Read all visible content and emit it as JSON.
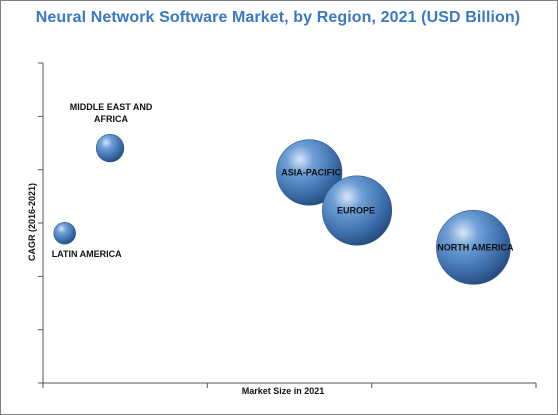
{
  "chart_data": {
    "type": "bubble",
    "title": "Neural Network Software Market, by Region, 2021 (USD Billion)",
    "xlabel": "Market Size in 2021",
    "ylabel": "CAGR (2016-2021)",
    "xlim": [
      0,
      100
    ],
    "ylim": [
      0,
      100
    ],
    "grid": false,
    "legend": "none",
    "bubble_color": "#4a7fc0",
    "points": [
      {
        "label": "MIDDLE EAST AND AFRICA",
        "label_lines": [
          "MIDDLE EAST AND",
          "AFRICA"
        ],
        "x": 13.6,
        "y": 73.4,
        "size": 1.6
      },
      {
        "label": "LATIN AMERICA",
        "label_lines": [
          "LATIN AMERICA"
        ],
        "x": 4.4,
        "y": 46.8,
        "size": 1.0
      },
      {
        "label": "ASIA-PACIFIC",
        "label_lines": [
          "ASIA-PACIFIC"
        ],
        "x": 54.0,
        "y": 65.8,
        "size": 3.3
      },
      {
        "label": "EUROPE",
        "label_lines": [
          "EUROPE"
        ],
        "x": 63.7,
        "y": 53.9,
        "size": 3.7
      },
      {
        "label": "NORTH AMERICA",
        "label_lines": [
          "NORTH AMERICA"
        ],
        "x": 87.3,
        "y": 42.4,
        "size": 4.2
      }
    ]
  }
}
